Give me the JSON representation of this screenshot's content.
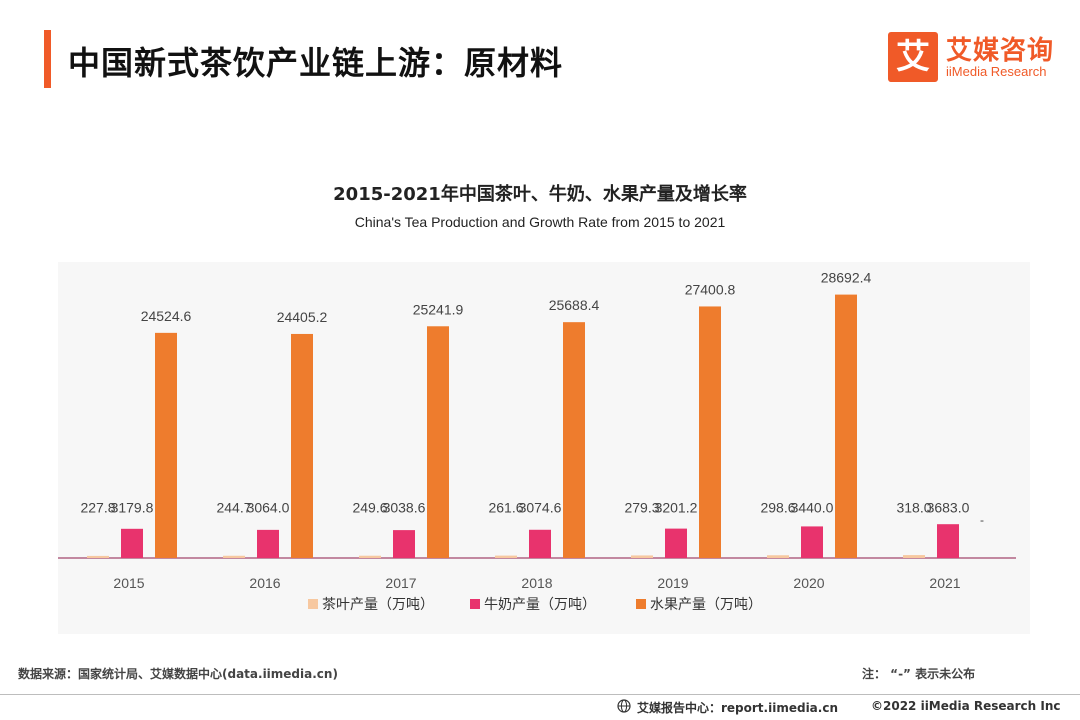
{
  "header": {
    "title": "中国新式茶饮产业链上游：原材料",
    "logo_mark": "艾",
    "logo_cn": "艾媒咨询",
    "logo_en": "iiMedia Research"
  },
  "colors": {
    "accent": "#f05a28",
    "tea": "#f7c8a0",
    "milk": "#e8336d",
    "fruit": "#ee7c2d"
  },
  "chart_data": {
    "type": "bar",
    "title": "2015-2021年中国茶叶、牛奶、水果产量及增长率",
    "subtitle": "China's Tea Production and Growth Rate from 2015 to 2021",
    "categories": [
      "2015",
      "2016",
      "2017",
      "2018",
      "2019",
      "2020",
      "2021"
    ],
    "series": [
      {
        "name": "茶叶产量（万吨）",
        "values": [
          227.8,
          244.7,
          249.6,
          261.6,
          279.3,
          298.6,
          318.0
        ],
        "labels": [
          "227.8",
          "244.7",
          "249.6",
          "261.6",
          "279.3",
          "298.6",
          "318.0"
        ]
      },
      {
        "name": "牛奶产量（万吨）",
        "values": [
          3179.8,
          3064.0,
          3038.6,
          3074.6,
          3201.2,
          3440.0,
          3683.0
        ],
        "labels": [
          "3179.8",
          "3064.0",
          "3038.6",
          "3074.6",
          "3201.2",
          "3440.0",
          "3683.0"
        ]
      },
      {
        "name": "水果产量（万吨）",
        "values": [
          24524.6,
          24405.2,
          25241.9,
          25688.4,
          27400.8,
          28692.4,
          null
        ],
        "labels": [
          "24524.6",
          "24405.2",
          "25241.9",
          "25688.4",
          "27400.8",
          "28692.4",
          "-"
        ]
      }
    ],
    "ylim": [
      0,
      30500
    ],
    "grid": false,
    "legend_position": "bottom"
  },
  "footer": {
    "source": "数据来源：国家统计局、艾媒数据中心(data.iimedia.cn)",
    "note": "注：  “-”  表示未公布",
    "report": "艾媒报告中心：report.iimedia.cn",
    "copyright": "©2022  iiMedia Research  Inc"
  }
}
